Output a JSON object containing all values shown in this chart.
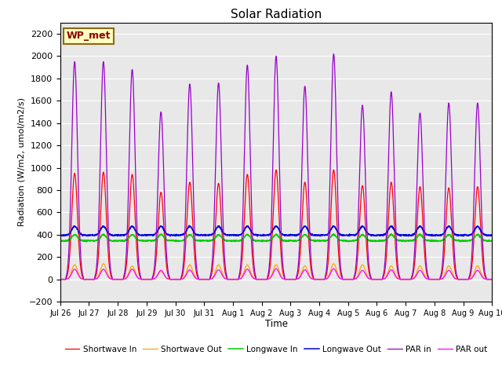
{
  "title": "Solar Radiation",
  "xlabel": "Time",
  "ylabel": "Radiation (W/m2, umol/m2/s)",
  "ylim": [
    -200,
    2300
  ],
  "yticks": [
    -200,
    0,
    200,
    400,
    600,
    800,
    1000,
    1200,
    1400,
    1600,
    1800,
    2000,
    2200
  ],
  "station_label": "WP_met",
  "x_tick_labels": [
    "Jul 26",
    "Jul 27",
    "Jul 28",
    "Jul 29",
    "Jul 30",
    "Jul 31",
    "Aug 1",
    "Aug 2",
    "Aug 3",
    "Aug 4",
    "Aug 5",
    "Aug 6",
    "Aug 7",
    "Aug 8",
    "Aug 9",
    "Aug 10"
  ],
  "num_days": 15,
  "colors": {
    "shortwave_in": "#ff0000",
    "shortwave_out": "#ffa500",
    "longwave_in": "#00cc00",
    "longwave_out": "#0000dd",
    "par_in": "#9900cc",
    "par_out": "#ff00ff"
  },
  "legend_labels": [
    "Shortwave In",
    "Shortwave Out",
    "Longwave In",
    "Longwave Out",
    "PAR in",
    "PAR out"
  ],
  "background_color": "#e8e8e8",
  "shortwave_in_peaks": [
    950,
    960,
    940,
    780,
    870,
    860,
    940,
    980,
    870,
    980,
    840,
    870,
    830,
    820,
    830
  ],
  "shortwave_out_peaks": [
    130,
    140,
    120,
    70,
    130,
    130,
    130,
    130,
    120,
    140,
    130,
    120,
    120,
    120,
    120
  ],
  "par_in_peaks": [
    1950,
    1950,
    1880,
    1500,
    1750,
    1760,
    1920,
    2000,
    1730,
    2020,
    1560,
    1680,
    1490,
    1580,
    1580
  ],
  "par_out_peaks": [
    90,
    90,
    90,
    80,
    85,
    85,
    90,
    95,
    85,
    95,
    80,
    85,
    80,
    80,
    80
  ],
  "longwave_in_base": 345,
  "longwave_in_day_bump": 55,
  "longwave_out_base": 395,
  "longwave_out_day_bump": 80,
  "samples_per_day": 144
}
